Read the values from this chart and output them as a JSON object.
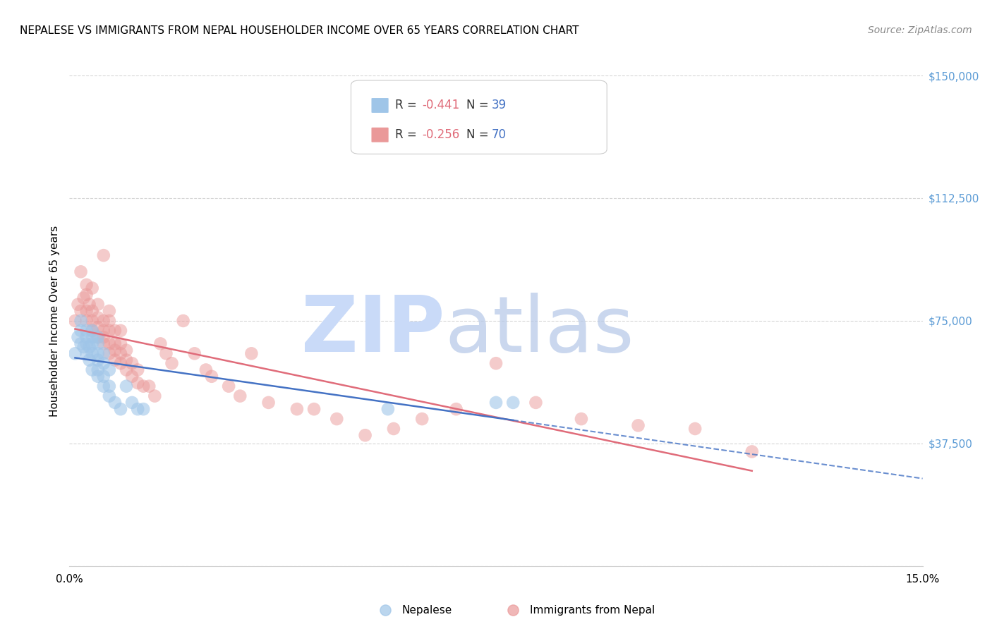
{
  "title": "NEPALESE VS IMMIGRANTS FROM NEPAL HOUSEHOLDER INCOME OVER 65 YEARS CORRELATION CHART",
  "source": "Source: ZipAtlas.com",
  "ylabel": "Householder Income Over 65 years",
  "xlim": [
    0.0,
    0.15
  ],
  "ylim": [
    0,
    150000
  ],
  "yticks": [
    0,
    37500,
    75000,
    112500,
    150000
  ],
  "ytick_labels": [
    "",
    "$37,500",
    "$75,000",
    "$112,500",
    "$150,000"
  ],
  "ytick_color": "#5b9bd5",
  "legend1_label_r": "R = ",
  "legend1_r_val": "-0.441",
  "legend1_n": "  N = ",
  "legend1_n_val": "39",
  "legend2_label_r": "R = ",
  "legend2_r_val": "-0.256",
  "legend2_n": "  N = ",
  "legend2_n_val": "70",
  "color_nepalese": "#9fc5e8",
  "color_immigrants": "#ea9999",
  "trendline_color_nepalese": "#4472c4",
  "trendline_color_immigrants": "#e06c7a",
  "watermark_zip_color": "#c9daf8",
  "watermark_atlas_color": "#b4c7e7",
  "nepalese_x": [
    0.001,
    0.0015,
    0.002,
    0.002,
    0.002,
    0.0025,
    0.003,
    0.003,
    0.003,
    0.003,
    0.0035,
    0.0035,
    0.004,
    0.004,
    0.004,
    0.004,
    0.004,
    0.005,
    0.005,
    0.005,
    0.005,
    0.005,
    0.005,
    0.006,
    0.006,
    0.006,
    0.006,
    0.007,
    0.007,
    0.007,
    0.008,
    0.009,
    0.01,
    0.011,
    0.012,
    0.013,
    0.056,
    0.075,
    0.078
  ],
  "nepalese_y": [
    65000,
    70000,
    68000,
    72000,
    75000,
    67000,
    65000,
    70000,
    72000,
    68000,
    63000,
    67000,
    60000,
    65000,
    68000,
    70000,
    72000,
    58000,
    60000,
    63000,
    65000,
    68000,
    70000,
    55000,
    58000,
    62000,
    65000,
    52000,
    55000,
    60000,
    50000,
    48000,
    55000,
    50000,
    48000,
    48000,
    48000,
    50000,
    50000
  ],
  "immigrants_x": [
    0.001,
    0.0015,
    0.002,
    0.002,
    0.0025,
    0.003,
    0.003,
    0.003,
    0.003,
    0.0035,
    0.004,
    0.004,
    0.004,
    0.004,
    0.005,
    0.005,
    0.005,
    0.005,
    0.006,
    0.006,
    0.006,
    0.006,
    0.006,
    0.007,
    0.007,
    0.007,
    0.007,
    0.007,
    0.008,
    0.008,
    0.008,
    0.008,
    0.009,
    0.009,
    0.009,
    0.009,
    0.01,
    0.01,
    0.01,
    0.011,
    0.011,
    0.012,
    0.012,
    0.013,
    0.014,
    0.015,
    0.016,
    0.017,
    0.018,
    0.02,
    0.022,
    0.024,
    0.025,
    0.028,
    0.03,
    0.032,
    0.035,
    0.04,
    0.043,
    0.047,
    0.052,
    0.057,
    0.062,
    0.068,
    0.075,
    0.082,
    0.09,
    0.1,
    0.11,
    0.12
  ],
  "immigrants_y": [
    75000,
    80000,
    78000,
    90000,
    82000,
    75000,
    78000,
    83000,
    86000,
    80000,
    72000,
    75000,
    78000,
    85000,
    70000,
    73000,
    76000,
    80000,
    68000,
    70000,
    72000,
    75000,
    95000,
    65000,
    68000,
    72000,
    75000,
    78000,
    63000,
    66000,
    68000,
    72000,
    62000,
    65000,
    68000,
    72000,
    60000,
    63000,
    66000,
    58000,
    62000,
    56000,
    60000,
    55000,
    55000,
    52000,
    68000,
    65000,
    62000,
    75000,
    65000,
    60000,
    58000,
    55000,
    52000,
    65000,
    50000,
    48000,
    48000,
    45000,
    40000,
    42000,
    45000,
    48000,
    62000,
    50000,
    45000,
    43000,
    42000,
    35000
  ]
}
